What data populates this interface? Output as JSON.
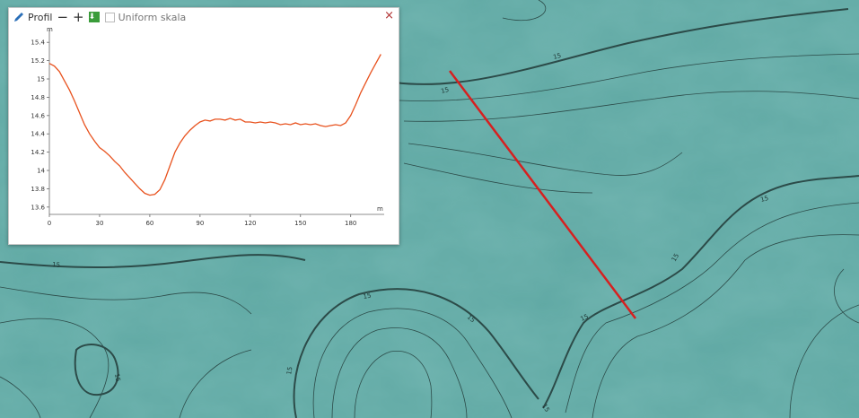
{
  "profile_panel": {
    "title": "Profil",
    "zoom_out_label": "−",
    "zoom_in_label": "+",
    "download_icon": "download-icon",
    "uniform_scale_label": "Uniform skala",
    "uniform_scale_checked": false,
    "close_label": "×"
  },
  "map": {
    "contour_label": "15",
    "profile_line_color": "#d62020",
    "terrain_color": "#5fa8a3"
  },
  "chart_data": {
    "type": "line",
    "title": "",
    "xlabel": "m",
    "ylabel": "m",
    "x_ticks": [
      0,
      30,
      60,
      90,
      120,
      150,
      180
    ],
    "y_ticks": [
      13.6,
      13.8,
      14,
      14.2,
      14.4,
      14.6,
      14.8,
      15,
      15.2,
      15.4
    ],
    "y_tick_labels": [
      "13.6",
      "13.8",
      "14",
      "14.2",
      "14.4",
      "14.6",
      "14.8",
      "15",
      "15.2",
      "15.4"
    ],
    "xlim": [
      0,
      200
    ],
    "ylim": [
      13.52,
      15.5
    ],
    "grid": false,
    "color": "#e8521e",
    "series": [
      {
        "x": [
          0,
          3,
          6,
          9,
          12,
          15,
          18,
          21,
          24,
          27,
          30,
          33,
          36,
          39,
          42,
          45,
          48,
          51,
          54,
          57,
          60,
          63,
          66,
          69,
          72,
          75,
          78,
          81,
          84,
          87,
          90,
          93,
          96,
          99,
          102,
          105,
          108,
          111,
          114,
          117,
          120,
          123,
          126,
          129,
          132,
          135,
          138,
          141,
          144,
          147,
          150,
          153,
          156,
          159,
          162,
          165,
          168,
          171,
          174,
          177,
          180,
          183,
          186,
          189,
          192,
          195,
          198
        ],
        "y": [
          15.17,
          15.14,
          15.08,
          14.98,
          14.88,
          14.76,
          14.63,
          14.5,
          14.4,
          14.32,
          14.25,
          14.21,
          14.16,
          14.1,
          14.05,
          13.98,
          13.92,
          13.86,
          13.8,
          13.75,
          13.73,
          13.74,
          13.79,
          13.9,
          14.05,
          14.2,
          14.3,
          14.38,
          14.44,
          14.49,
          14.53,
          14.55,
          14.54,
          14.56,
          14.56,
          14.55,
          14.57,
          14.55,
          14.56,
          14.53,
          14.53,
          14.52,
          14.53,
          14.52,
          14.53,
          14.52,
          14.5,
          14.51,
          14.5,
          14.52,
          14.5,
          14.51,
          14.5,
          14.51,
          14.49,
          14.48,
          14.49,
          14.5,
          14.49,
          14.52,
          14.6,
          14.72,
          14.85,
          14.96,
          15.07,
          15.17,
          15.27
        ]
      }
    ]
  }
}
